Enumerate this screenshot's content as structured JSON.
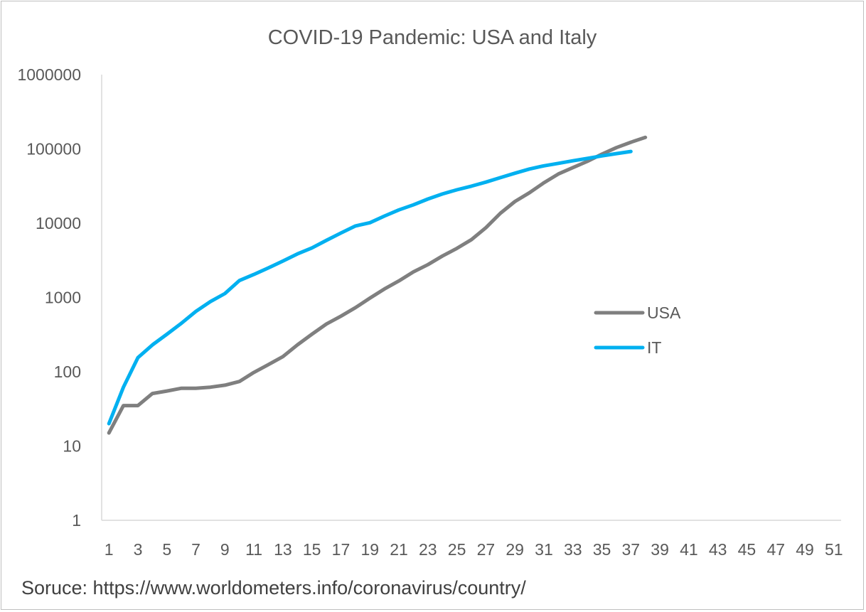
{
  "colors": {
    "USA": "#7f7f7f",
    "IT": "#00b0f0",
    "axis": "#d9d9d9",
    "text": "#595959"
  },
  "source": "Soruce: https://www.worldometers.info/coronavirus/country/",
  "chart_data": {
    "type": "line",
    "title": "COVID-19 Pandemic: USA and Italy",
    "xlabel": "",
    "ylabel": "",
    "y_scale": "log",
    "ylim": [
      1,
      1000000
    ],
    "xlim": [
      1,
      51
    ],
    "y_ticks": [
      "1",
      "10",
      "100",
      "1000",
      "10000",
      "100000",
      "1000000"
    ],
    "x_ticks": [
      "1",
      "3",
      "5",
      "7",
      "9",
      "11",
      "13",
      "15",
      "17",
      "19",
      "21",
      "23",
      "25",
      "27",
      "29",
      "31",
      "33",
      "35",
      "37",
      "39",
      "41",
      "43",
      "45",
      "47",
      "49",
      "51"
    ],
    "legend_position": "right",
    "grid": false,
    "series": [
      {
        "name": "USA",
        "color": "#7f7f7f",
        "x": [
          1,
          2,
          3,
          4,
          5,
          6,
          7,
          8,
          9,
          10,
          11,
          12,
          13,
          14,
          15,
          16,
          17,
          18,
          19,
          20,
          21,
          22,
          23,
          24,
          25,
          26,
          27,
          28,
          29,
          30,
          31,
          32,
          33,
          34,
          35,
          36,
          37,
          38
        ],
        "values": [
          15,
          35,
          35,
          51,
          55,
          60,
          60,
          62,
          66,
          74,
          98,
          125,
          160,
          230,
          320,
          440,
          560,
          730,
          980,
          1300,
          1670,
          2210,
          2770,
          3610,
          4580,
          6000,
          8700,
          13600,
          19600,
          25700,
          35000,
          46000,
          56000,
          68000,
          85000,
          104000,
          123000,
          143000
        ]
      },
      {
        "name": "IT",
        "color": "#00b0f0",
        "x": [
          1,
          2,
          3,
          4,
          5,
          6,
          7,
          8,
          9,
          10,
          11,
          12,
          13,
          14,
          15,
          16,
          17,
          18,
          19,
          20,
          21,
          22,
          23,
          24,
          25,
          26,
          27,
          28,
          29,
          30,
          31,
          32,
          33,
          34,
          35,
          36,
          37
        ],
        "values": [
          20,
          62,
          155,
          230,
          320,
          450,
          650,
          880,
          1130,
          1690,
          2040,
          2500,
          3090,
          3860,
          4640,
          5880,
          7380,
          9170,
          10150,
          12460,
          15110,
          17660,
          21160,
          24750,
          28170,
          31510,
          35710,
          41040,
          47020,
          53580,
          59140,
          63930,
          69180,
          74390,
          80540,
          86500,
          92470
        ]
      }
    ]
  }
}
